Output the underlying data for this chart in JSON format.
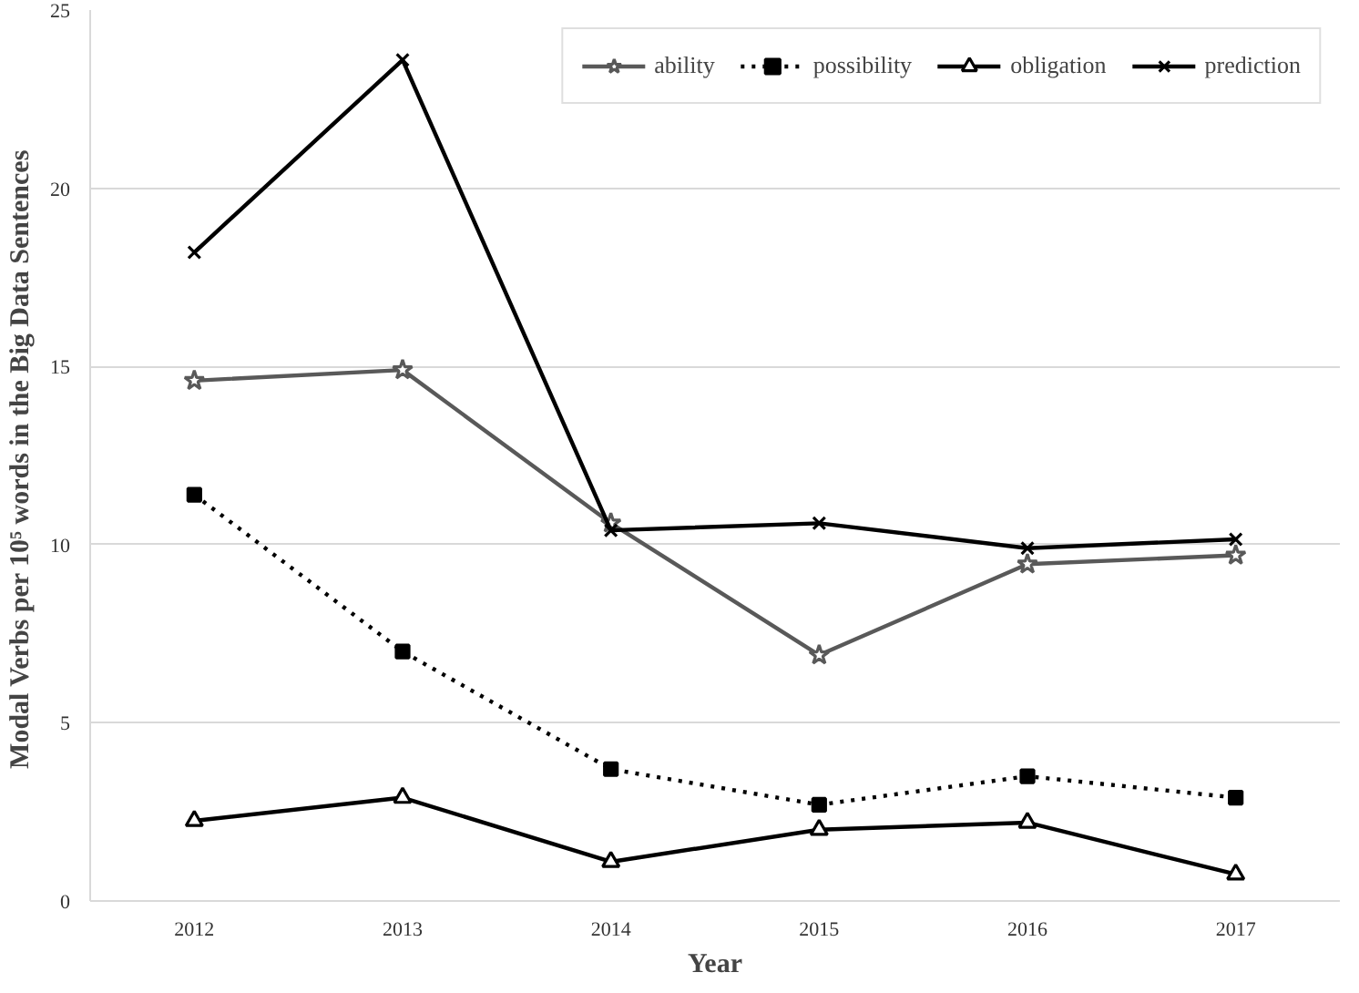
{
  "chart_data": {
    "type": "line",
    "xlabel": "Year",
    "ylabel": "Modal Verbs per 10⁵ words  in the Big Data Sentences",
    "categories": [
      "2012",
      "2013",
      "2014",
      "2015",
      "2016",
      "2017"
    ],
    "series": [
      {
        "name": "ability",
        "color": "#595959",
        "marker": "star",
        "line_style": "solid",
        "values": [
          14.6,
          14.9,
          10.6,
          6.9,
          9.45,
          9.7
        ]
      },
      {
        "name": "possibility",
        "color": "#000000",
        "marker": "square",
        "line_style": "dotted",
        "values": [
          11.4,
          7.0,
          3.7,
          2.7,
          3.5,
          2.9
        ]
      },
      {
        "name": "obligation",
        "color": "#000000",
        "marker": "triangle",
        "line_style": "solid",
        "values": [
          2.25,
          2.9,
          1.1,
          2.0,
          2.2,
          0.75
        ]
      },
      {
        "name": "prediction",
        "color": "#000000",
        "marker": "cross",
        "line_style": "solid",
        "values": [
          18.2,
          23.6,
          10.4,
          10.6,
          9.9,
          10.15
        ]
      }
    ],
    "ylim": [
      0,
      25
    ],
    "yticks": [
      0,
      5,
      10,
      15,
      20,
      25
    ],
    "grid": "y",
    "legend": "top right"
  }
}
